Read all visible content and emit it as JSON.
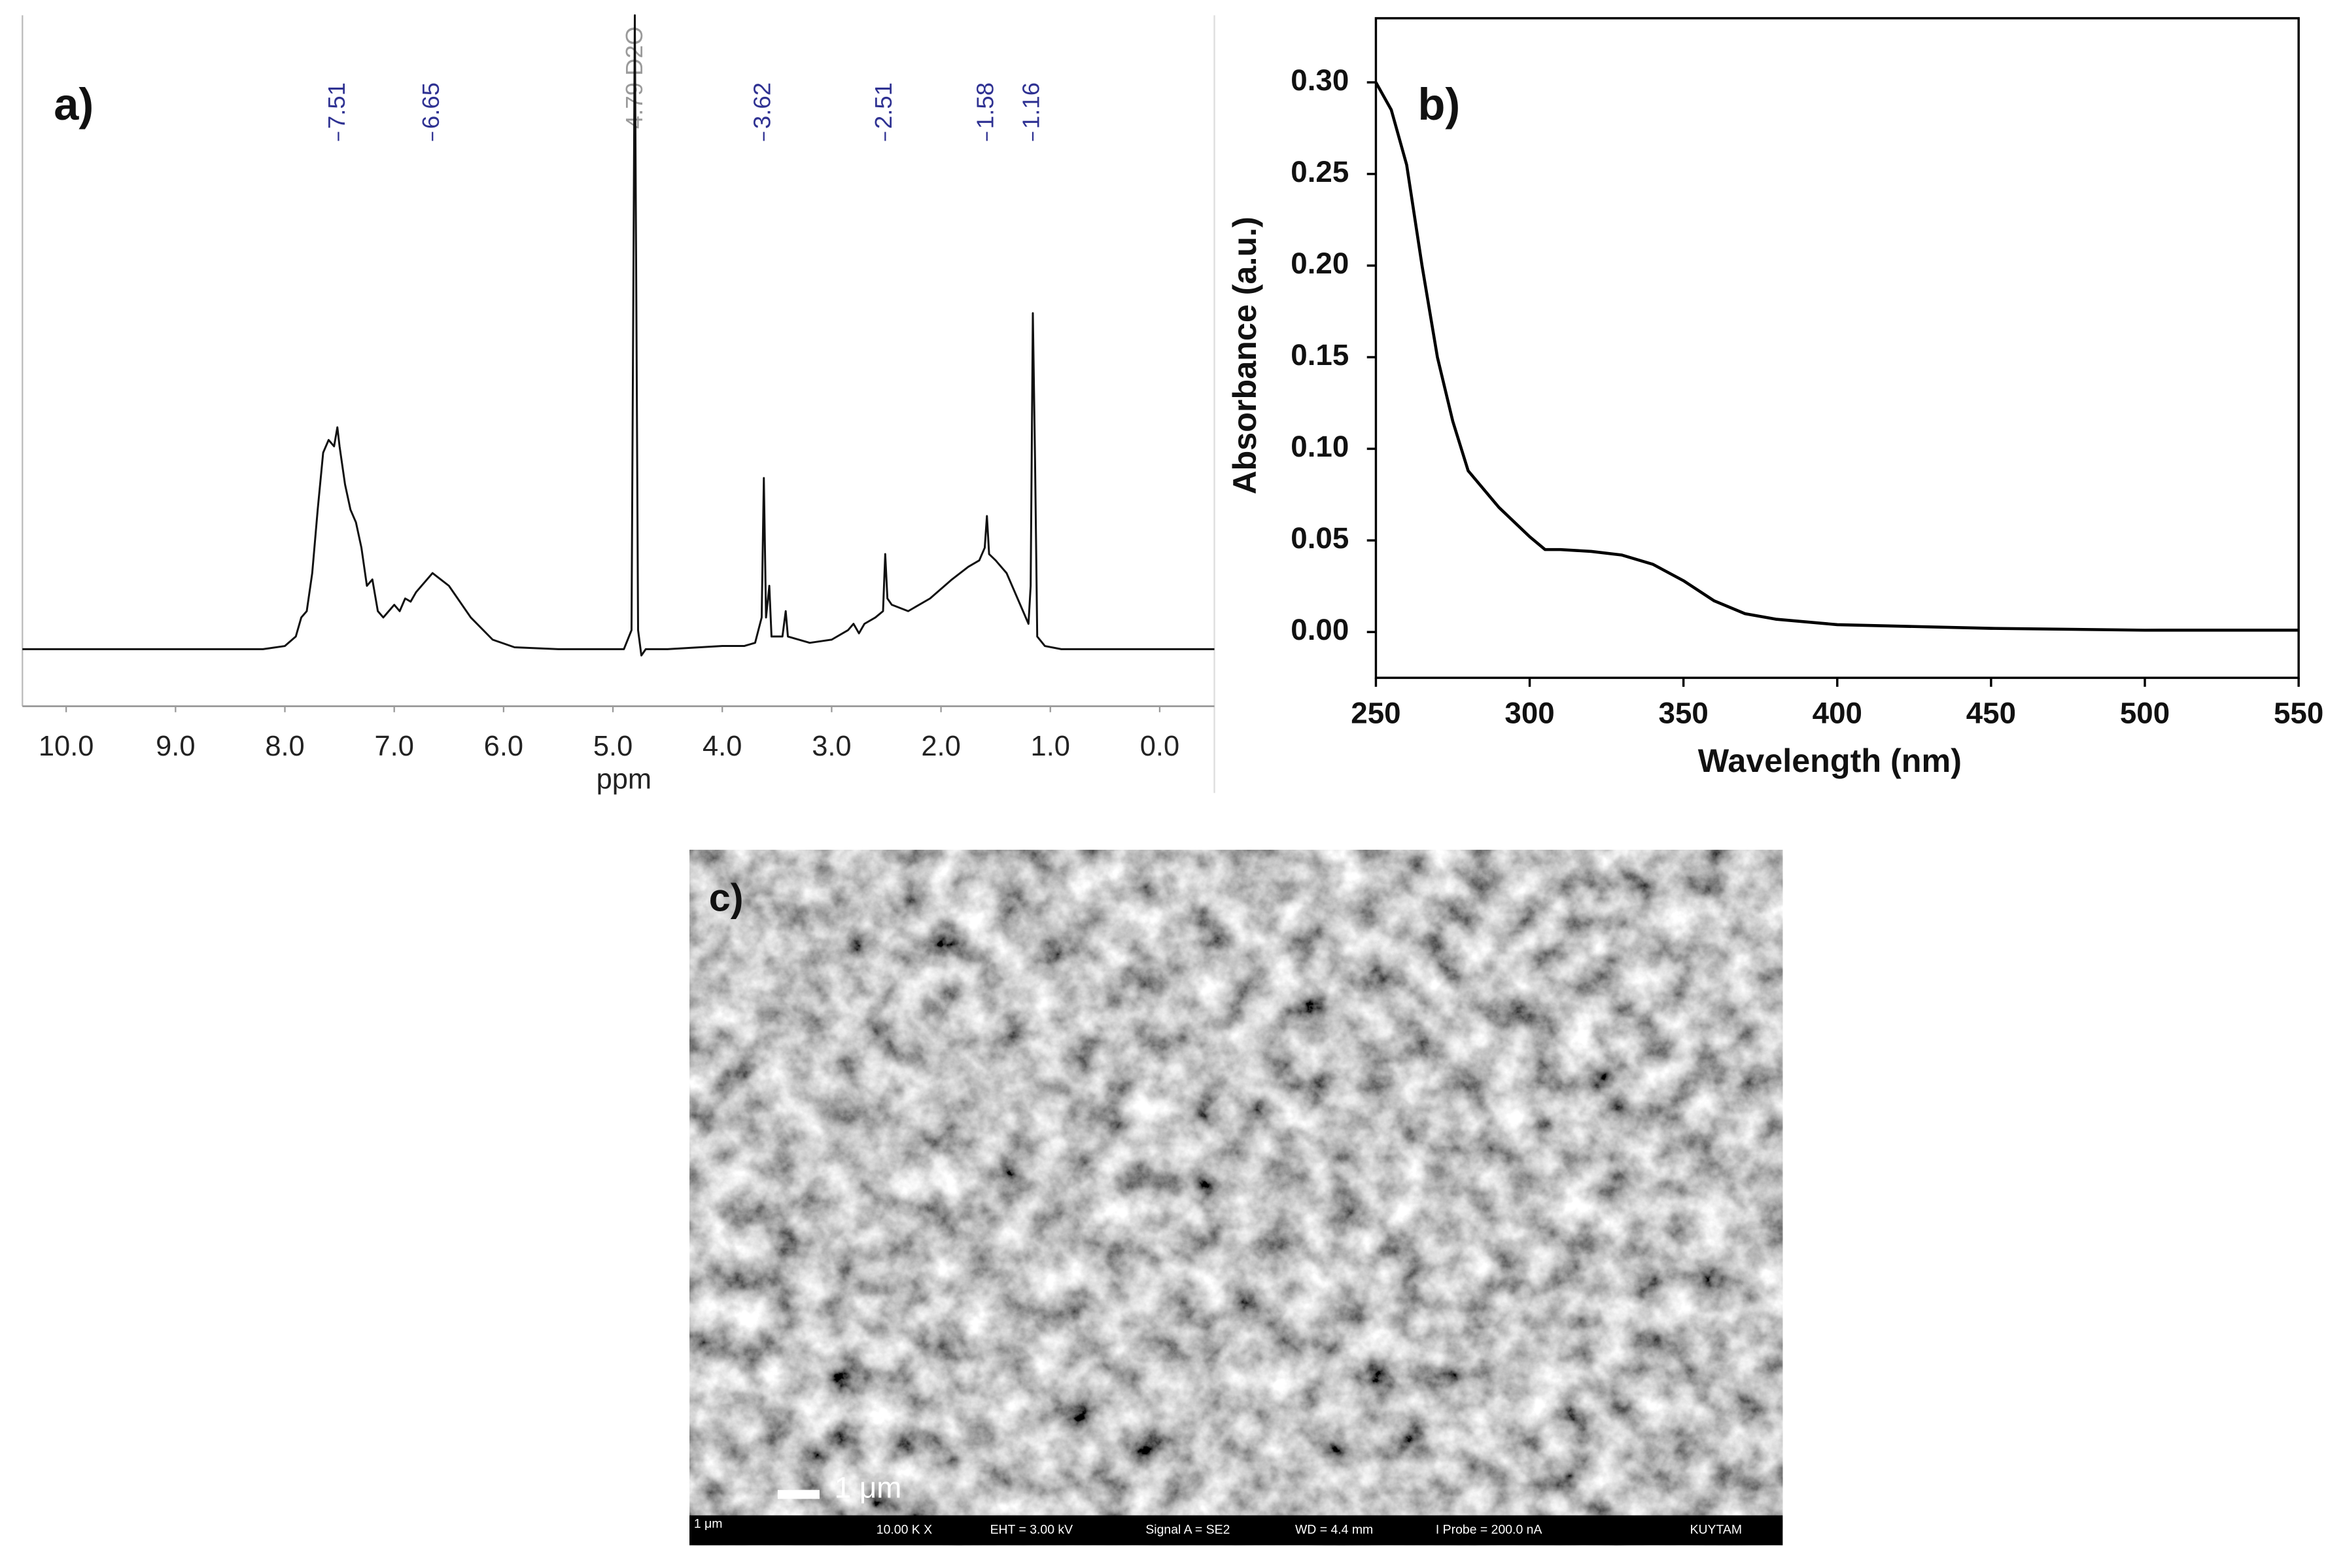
{
  "chart_data": [
    {
      "type": "line",
      "label": "a)",
      "xlabel": "ppm",
      "xlim": [
        10.4,
        -0.5
      ],
      "ylim": [
        -9,
        100
      ],
      "xticks": [
        {
          "value": 10,
          "label": "10.0"
        },
        {
          "value": 9,
          "label": "9.0"
        },
        {
          "value": 8,
          "label": "8.0"
        },
        {
          "value": 7,
          "label": "7.0"
        },
        {
          "value": 6,
          "label": "6.0"
        },
        {
          "value": 5,
          "label": "5.0"
        },
        {
          "value": 4,
          "label": "4.0"
        },
        {
          "value": 3,
          "label": "3.0"
        },
        {
          "value": 2,
          "label": "2.0"
        },
        {
          "value": 1,
          "label": "1.0"
        },
        {
          "value": 0,
          "label": "0.0"
        }
      ],
      "peaks": [
        7.51,
        6.65,
        3.62,
        2.51,
        1.58,
        1.16
      ],
      "peak_color": "#2e3192",
      "solvent_peak": {
        "value": 4.79,
        "label": "4.79 D2O"
      },
      "solvent_color": "#9a9a9a",
      "x": [
        10.4,
        8.2,
        8.0,
        7.9,
        7.85,
        7.8,
        7.75,
        7.7,
        7.65,
        7.6,
        7.55,
        7.52,
        7.5,
        7.45,
        7.4,
        7.35,
        7.3,
        7.25,
        7.2,
        7.15,
        7.1,
        7.05,
        7.0,
        6.95,
        6.9,
        6.85,
        6.8,
        6.7,
        6.65,
        6.5,
        6.3,
        6.1,
        5.9,
        5.5,
        4.9,
        4.83,
        4.8,
        4.77,
        4.74,
        4.7,
        4.5,
        4.0,
        3.8,
        3.7,
        3.64,
        3.62,
        3.6,
        3.57,
        3.55,
        3.45,
        3.42,
        3.4,
        3.2,
        3.0,
        2.85,
        2.8,
        2.75,
        2.7,
        2.6,
        2.53,
        2.51,
        2.49,
        2.45,
        2.3,
        2.1,
        1.9,
        1.75,
        1.65,
        1.6,
        1.58,
        1.56,
        1.5,
        1.4,
        1.3,
        1.2,
        1.18,
        1.16,
        1.14,
        1.12,
        1.05,
        0.9,
        -0.5
      ],
      "series": [
        {
          "color": "#111111",
          "values": [
            0,
            0,
            0.5,
            2,
            5,
            6,
            12,
            22,
            31,
            33,
            32,
            35,
            32,
            26,
            22,
            20,
            16,
            10,
            11,
            6,
            5,
            6,
            7,
            6,
            8,
            7.5,
            9,
            11,
            12,
            10,
            5,
            1.5,
            0.3,
            0,
            0,
            3,
            100,
            3,
            -1,
            0,
            0,
            0.5,
            0.5,
            1,
            5,
            27,
            5,
            10,
            2,
            2,
            6,
            2,
            1,
            1.5,
            3,
            4,
            2.5,
            4,
            5,
            6,
            15,
            8,
            7,
            6,
            8,
            11,
            13,
            14,
            16,
            21,
            15,
            14,
            12,
            8,
            4,
            10,
            53,
            30,
            2,
            0.5,
            0,
            0
          ]
        }
      ]
    },
    {
      "type": "line",
      "label": "b)",
      "xlabel": "Wavelength (nm)",
      "ylabel": "Absorbance (a.u.)",
      "xlim": [
        250,
        550
      ],
      "ylim": [
        -0.025,
        0.335
      ],
      "xticks": [
        250,
        300,
        350,
        400,
        450,
        500,
        550
      ],
      "yticks": [
        {
          "value": 0,
          "label": "0.00"
        },
        0.05,
        {
          "value": 0.1,
          "label": "0.10"
        },
        0.15,
        {
          "value": 0.2,
          "label": "0.20"
        },
        0.25,
        {
          "value": 0.3,
          "label": "0.30"
        }
      ],
      "x": [
        250,
        255,
        260,
        265,
        270,
        275,
        280,
        290,
        300,
        305,
        310,
        320,
        330,
        340,
        350,
        360,
        370,
        380,
        400,
        450,
        500,
        550
      ],
      "series": [
        {
          "color": "#000000",
          "values": [
            0.3,
            0.285,
            0.255,
            0.2,
            0.15,
            0.115,
            0.088,
            0.068,
            0.052,
            0.045,
            0.045,
            0.044,
            0.042,
            0.037,
            0.028,
            0.017,
            0.01,
            0.007,
            0.004,
            0.002,
            0.001,
            0.001
          ]
        }
      ]
    }
  ],
  "image": {
    "label": "c)",
    "scale_bar": "1 μm",
    "info_bar": [
      "1 μm",
      "10.00 K X",
      "EHT = 3.00 kV",
      "Signal A = SE2",
      "WD = 4.4 mm",
      "I Probe = 200.0 nA",
      "KUYTAM"
    ]
  }
}
